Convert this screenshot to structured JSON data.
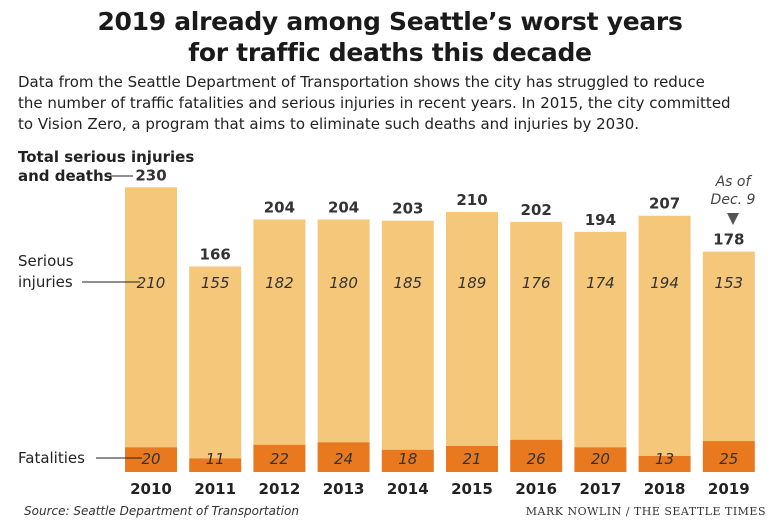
{
  "title_lines": [
    "2019 already among Seattle’s worst years",
    "for traffic deaths this decade"
  ],
  "subtitle_lines": [
    "Data from the Seattle Department of Transportation shows the city has struggled to reduce",
    "the number of traffic fatalities and serious injuries in recent years. In 2015, the city committed",
    "to Vision Zero, a program that aims to eliminate such deaths and injuries by 2030."
  ],
  "labels": {
    "total_line1": "Total serious injuries",
    "total_line2": "and deaths",
    "injuries_line1": "Serious",
    "injuries_line2": "injuries",
    "fatalities": "Fatalities",
    "note_line1": "As of",
    "note_line2": "Dec. 9"
  },
  "source": "Source: Seattle Department of Transportation",
  "credit": "MARK NOWLIN / THE SEATTLE TIMES",
  "colors": {
    "injuries": "#f5c77a",
    "fatalities": "#e8791e",
    "text": "#222222"
  },
  "chart_data": {
    "type": "bar",
    "stacked": true,
    "categories": [
      "2010",
      "2011",
      "2012",
      "2013",
      "2014",
      "2015",
      "2016",
      "2017",
      "2018",
      "2019"
    ],
    "series": [
      {
        "name": "Fatalities",
        "values": [
          20,
          11,
          22,
          24,
          18,
          21,
          26,
          20,
          13,
          25
        ]
      },
      {
        "name": "Serious injuries",
        "values": [
          210,
          155,
          182,
          180,
          185,
          189,
          176,
          174,
          194,
          153
        ]
      }
    ],
    "totals": [
      230,
      166,
      204,
      204,
      203,
      210,
      202,
      194,
      207,
      178
    ],
    "ylim": [
      0,
      230
    ],
    "highlight_category": "2019",
    "grid": false
  }
}
